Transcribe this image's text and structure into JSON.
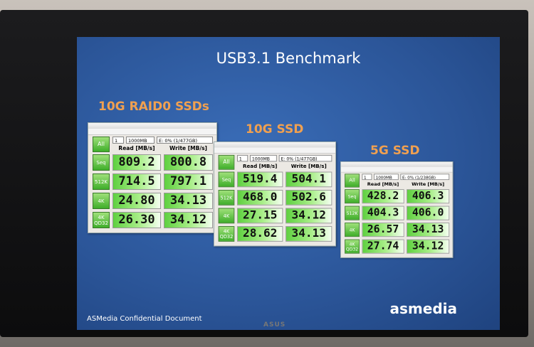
{
  "title": "USB3.1 Benchmark",
  "panels": [
    {
      "label": "10G RAID0 SSDs",
      "all_button": "All",
      "count": "1",
      "size": "1000MB",
      "drive": "E: 0% (1/477GB)",
      "read_header": "Read [MB/s]",
      "write_header": "Write [MB/s]",
      "rows": [
        {
          "test": "Seq",
          "read": "809.2",
          "write": "800.8"
        },
        {
          "test": "512K",
          "read": "714.5",
          "write": "797.1"
        },
        {
          "test": "4K",
          "read": "24.80",
          "write": "34.13"
        },
        {
          "test": "4K QD32",
          "read": "26.30",
          "write": "34.12"
        }
      ]
    },
    {
      "label": "10G SSD",
      "all_button": "All",
      "count": "1",
      "size": "1000MB",
      "drive": "E: 0% (1/477GB)",
      "read_header": "Read [MB/s]",
      "write_header": "Write [MB/s]",
      "rows": [
        {
          "test": "Seq",
          "read": "519.4",
          "write": "504.1"
        },
        {
          "test": "512K",
          "read": "468.0",
          "write": "502.6"
        },
        {
          "test": "4K",
          "read": "27.15",
          "write": "34.12"
        },
        {
          "test": "4K QD32",
          "read": "28.62",
          "write": "34.13"
        }
      ]
    },
    {
      "label": "5G SSD",
      "all_button": "All",
      "count": "1",
      "size": "1000MB",
      "drive": "E: 0% (1/238GB)",
      "read_header": "Read [MB/s]",
      "write_header": "Write [MB/s]",
      "rows": [
        {
          "test": "Seq",
          "read": "428.2",
          "write": "406.3"
        },
        {
          "test": "512K",
          "read": "404.3",
          "write": "406.0"
        },
        {
          "test": "4K",
          "read": "26.57",
          "write": "34.13"
        },
        {
          "test": "4K QD32",
          "read": "27.74",
          "write": "34.12"
        }
      ]
    }
  ],
  "footer": "ASMedia Confidential Document",
  "logo": "asmedia",
  "monitor_brand": "ASUS"
}
